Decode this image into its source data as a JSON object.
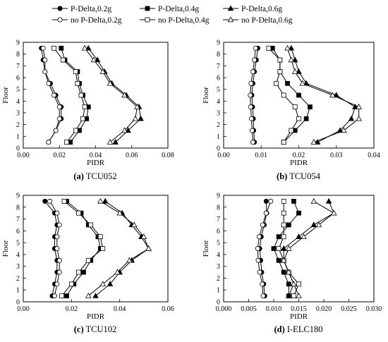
{
  "legend": {
    "items": [
      {
        "label": "P-Delta,0.2g",
        "marker": "circle",
        "filled": true
      },
      {
        "label": "P-Delta,0.4g",
        "marker": "square",
        "filled": true
      },
      {
        "label": "P-Delta,0.6g",
        "marker": "triangle",
        "filled": true
      },
      {
        "label": "no P-Delta,0.2g",
        "marker": "circle",
        "filled": false
      },
      {
        "label": "no P-Delta,0.4g",
        "marker": "square",
        "filled": false
      },
      {
        "label": "no P-Delta,0.6g",
        "marker": "triangle",
        "filled": false
      }
    ]
  },
  "chart_data": [
    {
      "type": "line",
      "caption_letter": "(a)",
      "caption_text": " TCU052",
      "xlabel": "PIDR",
      "ylabel": "Floor",
      "xlim": [
        0,
        0.08
      ],
      "ylim": [
        0,
        9
      ],
      "xticks": [
        "0.00",
        "0.02",
        "0.04",
        "0.06",
        "0.08"
      ],
      "xtick_values": [
        0,
        0.02,
        0.04,
        0.06,
        0.08
      ],
      "yticks": [
        "0",
        "1",
        "2",
        "3",
        "4",
        "5",
        "6",
        "7",
        "8",
        "9"
      ],
      "floors": [
        0.5,
        1.5,
        2.5,
        3.5,
        4.5,
        5.5,
        6.5,
        7.5,
        8.5
      ],
      "series": [
        {
          "name": "P-Delta,0.2g",
          "values": [
            0.014,
            0.018,
            0.021,
            0.021,
            0.018,
            0.015,
            0.012,
            0.011,
            0.01
          ]
        },
        {
          "name": "P-Delta,0.4g",
          "values": [
            0.026,
            0.031,
            0.035,
            0.036,
            0.033,
            0.031,
            0.03,
            0.023,
            0.021
          ]
        },
        {
          "name": "P-Delta,0.6g",
          "values": [
            0.051,
            0.058,
            0.065,
            0.064,
            0.057,
            0.049,
            0.045,
            0.041,
            0.036
          ]
        },
        {
          "name": "no P-Delta,0.2g",
          "values": [
            0.014,
            0.018,
            0.02,
            0.02,
            0.017,
            0.014,
            0.012,
            0.012,
            0.011
          ]
        },
        {
          "name": "no P-Delta,0.4g",
          "values": [
            0.024,
            0.029,
            0.033,
            0.034,
            0.032,
            0.03,
            0.029,
            0.022,
            0.017
          ]
        },
        {
          "name": "no P-Delta,0.6g",
          "values": [
            0.048,
            0.056,
            0.062,
            0.063,
            0.056,
            0.048,
            0.044,
            0.039,
            0.034
          ]
        }
      ]
    },
    {
      "type": "line",
      "caption_letter": "(b)",
      "caption_text": " TCU054",
      "xlabel": "PIDR",
      "ylabel": "Floor",
      "xlim": [
        0,
        0.04
      ],
      "ylim": [
        0,
        9
      ],
      "xticks": [
        "0.00",
        "0.01",
        "0.02",
        "0.03",
        "0.04"
      ],
      "xtick_values": [
        0,
        0.01,
        0.02,
        0.03,
        0.04
      ],
      "yticks": [
        "0",
        "1",
        "2",
        "3",
        "4",
        "5",
        "6",
        "7",
        "8",
        "9"
      ],
      "floors": [
        0.5,
        1.5,
        2.5,
        3.5,
        4.5,
        5.5,
        6.5,
        7.5,
        8.5
      ],
      "series": [
        {
          "name": "P-Delta,0.2g",
          "values": [
            0.0082,
            0.008,
            0.0079,
            0.0077,
            0.0075,
            0.0078,
            0.0082,
            0.0087,
            0.0091
          ]
        },
        {
          "name": "P-Delta,0.4g",
          "values": [
            0.016,
            0.019,
            0.022,
            0.023,
            0.02,
            0.017,
            0.015,
            0.015,
            0.013
          ]
        },
        {
          "name": "P-Delta,0.6g",
          "values": [
            0.025,
            0.031,
            0.034,
            0.035,
            0.03,
            0.022,
            0.02,
            0.019,
            0.018
          ]
        },
        {
          "name": "no P-Delta,0.2g",
          "values": [
            0.0078,
            0.0076,
            0.0074,
            0.0072,
            0.0071,
            0.0073,
            0.0078,
            0.0082,
            0.0085
          ]
        },
        {
          "name": "no P-Delta,0.4g",
          "values": [
            0.016,
            0.018,
            0.02,
            0.019,
            0.016,
            0.014,
            0.015,
            0.015,
            0.012
          ]
        },
        {
          "name": "no P-Delta,0.6g",
          "values": [
            0.024,
            0.032,
            0.036,
            0.036,
            0.029,
            0.021,
            0.019,
            0.018,
            0.017
          ]
        }
      ]
    },
    {
      "type": "line",
      "caption_letter": "(c)",
      "caption_text": " TCU102",
      "xlabel": "PIDR",
      "ylabel": "Floor",
      "xlim": [
        0,
        0.06
      ],
      "ylim": [
        0,
        9
      ],
      "xticks": [
        "0.00",
        "0.02",
        "0.04",
        "0.06"
      ],
      "xtick_values": [
        0,
        0.02,
        0.04,
        0.06
      ],
      "yticks": [
        "0",
        "1",
        "2",
        "3",
        "4",
        "5",
        "6",
        "7",
        "8",
        "9"
      ],
      "floors": [
        0.5,
        1.5,
        2.5,
        3.5,
        4.5,
        5.5,
        6.5,
        7.5,
        8.5
      ],
      "series": [
        {
          "name": "P-Delta,0.2g",
          "values": [
            0.012,
            0.013,
            0.014,
            0.014,
            0.013,
            0.013,
            0.014,
            0.013,
            0.009
          ]
        },
        {
          "name": "P-Delta,0.4g",
          "values": [
            0.018,
            0.021,
            0.025,
            0.028,
            0.032,
            0.031,
            0.027,
            0.024,
            0.018
          ]
        },
        {
          "name": "P-Delta,0.6g",
          "values": [
            0.03,
            0.036,
            0.04,
            0.045,
            0.052,
            0.049,
            0.045,
            0.041,
            0.034
          ]
        },
        {
          "name": "no P-Delta,0.2g",
          "values": [
            0.013,
            0.014,
            0.015,
            0.015,
            0.014,
            0.014,
            0.015,
            0.014,
            0.011
          ]
        },
        {
          "name": "no P-Delta,0.4g",
          "values": [
            0.016,
            0.02,
            0.023,
            0.027,
            0.033,
            0.032,
            0.028,
            0.023,
            0.017
          ]
        },
        {
          "name": "no P-Delta,0.6g",
          "values": [
            0.027,
            0.033,
            0.039,
            0.044,
            0.052,
            0.05,
            0.046,
            0.04,
            0.032
          ]
        }
      ]
    },
    {
      "type": "line",
      "caption_letter": "(d)",
      "caption_text": " I-ELC180",
      "xlabel": "PIDR",
      "ylabel": "Floor",
      "xlim": [
        0,
        0.03
      ],
      "ylim": [
        0,
        9
      ],
      "xticks": [
        "0.000",
        "0.005",
        "0.010",
        "0.015",
        "0.020",
        "0.025",
        "0.030"
      ],
      "xtick_values": [
        0,
        0.005,
        0.01,
        0.015,
        0.02,
        0.025,
        0.03
      ],
      "yticks": [
        "0",
        "1",
        "2",
        "3",
        "4",
        "5",
        "6",
        "7",
        "8",
        "9"
      ],
      "floors": [
        0.5,
        1.5,
        2.5,
        3.5,
        4.5,
        5.5,
        6.5,
        7.5,
        8.5
      ],
      "series": [
        {
          "name": "P-Delta,0.2g",
          "values": [
            0.0082,
            0.008,
            0.0076,
            0.0074,
            0.0072,
            0.0075,
            0.0081,
            0.0086,
            0.0085
          ]
        },
        {
          "name": "P-Delta,0.4g",
          "values": [
            0.013,
            0.013,
            0.012,
            0.011,
            0.01,
            0.011,
            0.013,
            0.015,
            0.014
          ]
        },
        {
          "name": "P-Delta,0.6g",
          "values": [
            0.013,
            0.014,
            0.013,
            0.012,
            0.012,
            0.015,
            0.018,
            0.022,
            0.021
          ]
        },
        {
          "name": "no P-Delta,0.2g",
          "values": [
            0.0079,
            0.0077,
            0.0072,
            0.0069,
            0.0068,
            0.0071,
            0.0078,
            0.0085,
            0.0094
          ]
        },
        {
          "name": "no P-Delta,0.4g",
          "values": [
            0.014,
            0.015,
            0.013,
            0.012,
            0.011,
            0.012,
            0.012,
            0.012,
            0.012
          ]
        },
        {
          "name": "no P-Delta,0.6g",
          "values": [
            0.015,
            0.014,
            0.013,
            0.012,
            0.013,
            0.016,
            0.019,
            0.022,
            0.018
          ]
        }
      ]
    }
  ]
}
